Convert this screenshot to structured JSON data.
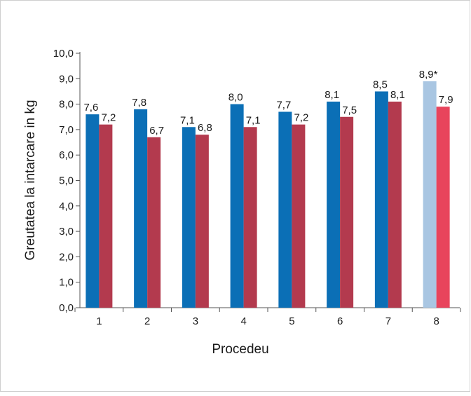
{
  "chart_data": {
    "type": "bar",
    "title": "",
    "xlabel": "Procedeu",
    "ylabel": "Greutatea la intarcare in kg",
    "ylim": [
      0,
      10
    ],
    "ytick_step": 1,
    "ytick_labels": [
      "0,0",
      "1,0",
      "2,0",
      "3,0",
      "4,0",
      "5,0",
      "6,0",
      "7,0",
      "8,0",
      "9,0",
      "10,0"
    ],
    "grid": false,
    "legend": "none",
    "categories": [
      "1",
      "2",
      "3",
      "4",
      "5",
      "6",
      "7",
      "8"
    ],
    "series": [
      {
        "values": [
          7.6,
          7.8,
          7.1,
          8.0,
          7.7,
          8.1,
          8.5,
          8.9
        ],
        "labels": [
          "7,6",
          "7,8",
          "7,1",
          "8,0",
          "7,7",
          "8,1",
          "8,5",
          "8,9*"
        ],
        "color": "#0b6fb6",
        "highlight_color": "#a9c6e2"
      },
      {
        "values": [
          7.2,
          6.7,
          6.8,
          7.1,
          7.2,
          7.5,
          8.1,
          7.9
        ],
        "labels": [
          "7,2",
          "6,7",
          "6,8",
          "7,1",
          "7,2",
          "7,5",
          "8,1",
          "7,9"
        ],
        "color": "#b33a4e",
        "highlight_color": "#e8445c"
      }
    ],
    "highlight_category": "8"
  }
}
